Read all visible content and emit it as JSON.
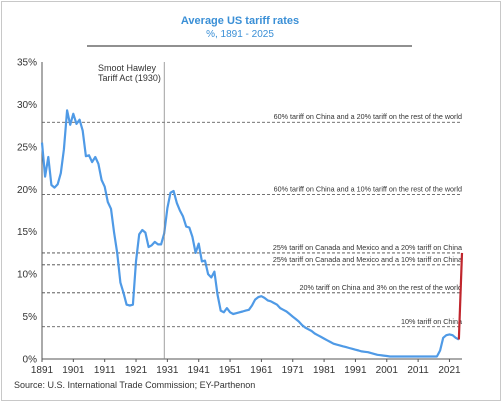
{
  "chart_data": {
    "type": "line",
    "title": "Average US tariff rates",
    "subtitle": "%, 1891 - 2025",
    "source": "Source: U.S. International Trade Commission; EY-Parthenon",
    "xlim": [
      1891,
      2025
    ],
    "ylim": [
      0,
      35
    ],
    "x_ticks": [
      1891,
      1901,
      1911,
      1921,
      1931,
      1941,
      1951,
      1961,
      1971,
      1981,
      1991,
      2001,
      2011,
      2021
    ],
    "y_ticks": [
      0,
      5,
      10,
      15,
      20,
      25,
      30,
      35
    ],
    "y_tick_labels": [
      "0%",
      "5%",
      "10%",
      "15%",
      "20%",
      "25%",
      "30%",
      "35%"
    ],
    "line_color": "#4f9ae6",
    "highlight_color": "#c0262d",
    "event_marker": {
      "x": 1930,
      "label_lines": [
        "Smoot Hawley",
        "Tariff Act (1930)"
      ]
    },
    "series": [
      {
        "values": [
          [
            1891,
            25.5
          ],
          [
            1892,
            21.5
          ],
          [
            1893,
            23.8
          ],
          [
            1894,
            20.5
          ],
          [
            1895,
            20.2
          ],
          [
            1896,
            20.6
          ],
          [
            1897,
            21.9
          ],
          [
            1898,
            24.7
          ],
          [
            1899,
            29.3
          ],
          [
            1900,
            27.6
          ],
          [
            1901,
            28.9
          ],
          [
            1902,
            27.7
          ],
          [
            1903,
            28.2
          ],
          [
            1904,
            26.9
          ],
          [
            1905,
            23.9
          ],
          [
            1906,
            24.0
          ],
          [
            1907,
            23.2
          ],
          [
            1908,
            23.8
          ],
          [
            1909,
            23.0
          ],
          [
            1910,
            21.1
          ],
          [
            1911,
            20.3
          ],
          [
            1912,
            18.5
          ],
          [
            1913,
            17.7
          ],
          [
            1914,
            14.9
          ],
          [
            1915,
            12.5
          ],
          [
            1916,
            9.0
          ],
          [
            1917,
            7.8
          ],
          [
            1918,
            6.4
          ],
          [
            1919,
            6.3
          ],
          [
            1920,
            6.4
          ],
          [
            1921,
            11.5
          ],
          [
            1922,
            14.7
          ],
          [
            1923,
            15.2
          ],
          [
            1924,
            14.9
          ],
          [
            1925,
            13.2
          ],
          [
            1926,
            13.4
          ],
          [
            1927,
            13.8
          ],
          [
            1928,
            13.5
          ],
          [
            1929,
            13.5
          ],
          [
            1930,
            14.8
          ],
          [
            1931,
            17.8
          ],
          [
            1932,
            19.6
          ],
          [
            1933,
            19.8
          ],
          [
            1934,
            18.4
          ],
          [
            1935,
            17.5
          ],
          [
            1936,
            16.8
          ],
          [
            1937,
            15.6
          ],
          [
            1938,
            15.5
          ],
          [
            1939,
            14.4
          ],
          [
            1940,
            12.5
          ],
          [
            1941,
            13.6
          ],
          [
            1942,
            11.5
          ],
          [
            1943,
            11.6
          ],
          [
            1944,
            10.0
          ],
          [
            1945,
            9.6
          ],
          [
            1946,
            10.3
          ],
          [
            1947,
            7.6
          ],
          [
            1948,
            5.7
          ],
          [
            1949,
            5.5
          ],
          [
            1950,
            6.0
          ],
          [
            1951,
            5.5
          ],
          [
            1952,
            5.3
          ],
          [
            1953,
            5.4
          ],
          [
            1954,
            5.5
          ],
          [
            1955,
            5.6
          ],
          [
            1956,
            5.7
          ],
          [
            1957,
            5.8
          ],
          [
            1958,
            6.3
          ],
          [
            1959,
            7.0
          ],
          [
            1960,
            7.3
          ],
          [
            1961,
            7.4
          ],
          [
            1962,
            7.2
          ],
          [
            1963,
            6.9
          ],
          [
            1964,
            6.8
          ],
          [
            1965,
            6.6
          ],
          [
            1966,
            6.4
          ],
          [
            1967,
            6.0
          ],
          [
            1968,
            5.8
          ],
          [
            1969,
            5.6
          ],
          [
            1970,
            5.3
          ],
          [
            1971,
            5.0
          ],
          [
            1972,
            4.7
          ],
          [
            1973,
            4.4
          ],
          [
            1974,
            4.0
          ],
          [
            1975,
            3.7
          ],
          [
            1976,
            3.5
          ],
          [
            1977,
            3.3
          ],
          [
            1978,
            3.0
          ],
          [
            1979,
            2.8
          ],
          [
            1980,
            2.6
          ],
          [
            1981,
            2.4
          ],
          [
            1982,
            2.2
          ],
          [
            1983,
            2.0
          ],
          [
            1984,
            1.8
          ],
          [
            1985,
            1.7
          ],
          [
            1986,
            1.6
          ],
          [
            1987,
            1.5
          ],
          [
            1988,
            1.4
          ],
          [
            1989,
            1.3
          ],
          [
            1990,
            1.2
          ],
          [
            1991,
            1.1
          ],
          [
            1992,
            1.0
          ],
          [
            1993,
            0.9
          ],
          [
            1994,
            0.85
          ],
          [
            1995,
            0.8
          ],
          [
            1996,
            0.7
          ],
          [
            1997,
            0.6
          ],
          [
            1998,
            0.5
          ],
          [
            1999,
            0.45
          ],
          [
            2000,
            0.4
          ],
          [
            2001,
            0.35
          ],
          [
            2002,
            0.3
          ],
          [
            2003,
            0.3
          ],
          [
            2004,
            0.3
          ],
          [
            2005,
            0.3
          ],
          [
            2006,
            0.3
          ],
          [
            2007,
            0.3
          ],
          [
            2008,
            0.3
          ],
          [
            2009,
            0.3
          ],
          [
            2010,
            0.3
          ],
          [
            2011,
            0.3
          ],
          [
            2012,
            0.3
          ],
          [
            2013,
            0.3
          ],
          [
            2014,
            0.3
          ],
          [
            2015,
            0.3
          ],
          [
            2016,
            0.3
          ],
          [
            2017,
            0.3
          ],
          [
            2018,
            1.0
          ],
          [
            2019,
            2.5
          ],
          [
            2020,
            2.8
          ],
          [
            2021,
            2.9
          ],
          [
            2022,
            2.8
          ],
          [
            2023,
            2.5
          ],
          [
            2024,
            2.3
          ]
        ]
      }
    ],
    "highlight_segment": [
      [
        2024,
        2.3
      ],
      [
        2025,
        12.5
      ]
    ],
    "reference_lines": [
      {
        "y": 27.9,
        "label": "60% tariff on China and a 20% tariff on the rest of the world"
      },
      {
        "y": 19.4,
        "label": "60% tariff on China and a 10% tariff on the rest of the world"
      },
      {
        "y": 12.5,
        "label": "25% tariff on Canada and Mexico and a 20% tariff on China"
      },
      {
        "y": 11.1,
        "label": "25% tariff on Canada and Mexico and a 10% tariff on China"
      },
      {
        "y": 7.8,
        "label": "20% tariff on China and 3% on the rest of the world"
      },
      {
        "y": 3.8,
        "label": "10% tariff on China"
      }
    ]
  }
}
